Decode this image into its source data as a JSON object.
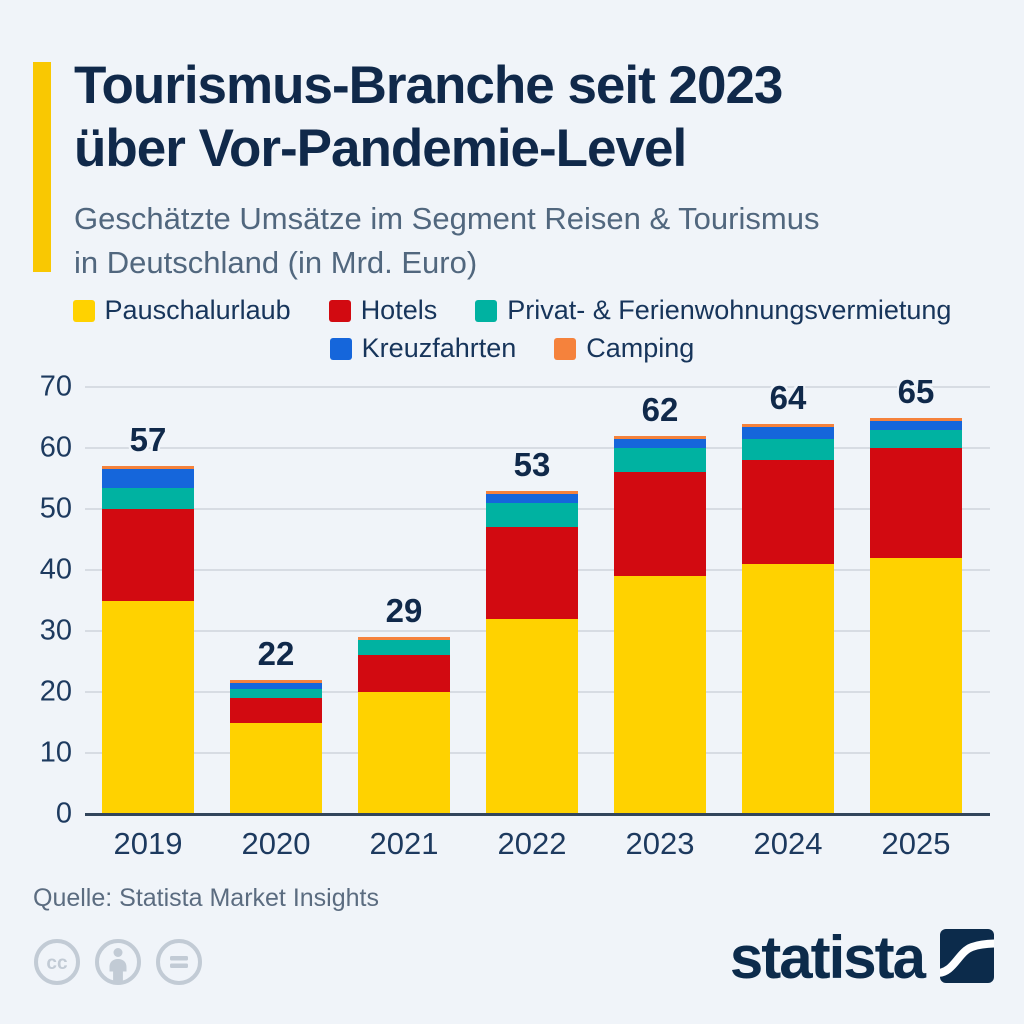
{
  "header": {
    "title_line1": "Tourismus-Branche seit 2023",
    "title_line2": "über Vor-Pandemie-Level",
    "subtitle_line1": "Geschätzte Umsätze im Segment Reisen & Tourismus",
    "subtitle_line2": "in Deutschland (in Mrd. Euro)"
  },
  "chart_data": {
    "type": "bar",
    "stacked": true,
    "title": "Tourismus-Branche seit 2023 über Vor-Pandemie-Level",
    "subtitle": "Geschätzte Umsätze im Segment Reisen & Tourismus in Deutschland (in Mrd. Euro)",
    "unit": "Mrd. Euro",
    "categories": [
      "2019",
      "2020",
      "2021",
      "2022",
      "2023",
      "2024",
      "2025"
    ],
    "series": [
      {
        "name": "Pauschalurlaub",
        "color": "#FFD200",
        "values": [
          35,
          15,
          20,
          32,
          39,
          41,
          42
        ]
      },
      {
        "name": "Hotels",
        "color": "#D20A11",
        "values": [
          15,
          4,
          6,
          15,
          17,
          17,
          18
        ]
      },
      {
        "name": "Privat- & Ferienwohnungsvermietung",
        "color": "#00B2A1",
        "values": [
          3.5,
          1.5,
          2.5,
          4,
          4,
          3.5,
          3
        ]
      },
      {
        "name": "Kreuzfahrten",
        "color": "#1566DB",
        "values": [
          3,
          1,
          0,
          1.5,
          1.5,
          2,
          1.5
        ]
      },
      {
        "name": "Camping",
        "color": "#F5823C",
        "values": [
          0.5,
          0.5,
          0.5,
          0.5,
          0.5,
          0.5,
          0.5
        ]
      }
    ],
    "totals": [
      57,
      22,
      29,
      53,
      62,
      64,
      65
    ],
    "ylim": [
      0,
      70
    ],
    "yticks": [
      0,
      10,
      20,
      30,
      40,
      50,
      60,
      70
    ],
    "grid": true,
    "legend_position": "top",
    "legend_rows": [
      [
        "Pauschalurlaub",
        "Hotels",
        "Privat- & Ferienwohnungsvermietung"
      ],
      [
        "Kreuzfahrten",
        "Camping"
      ]
    ]
  },
  "footer": {
    "source": "Quelle: Statista Market Insights",
    "license_icons": [
      "cc",
      "by",
      "nd"
    ],
    "brand_wordmark": "statista"
  },
  "colors": {
    "background": "#F0F4F9",
    "accent_bar": "#F9C802",
    "title": "#10294A",
    "subtitle": "#51677E",
    "axis_text": "#1D3A5F",
    "legend_text": "#17355B",
    "gridline": "#D7DCE3",
    "axis_line": "#32455B",
    "total_label": "#10294A",
    "icon_gray": "#C2CBD5",
    "logo_navy": "#0C2B4B"
  }
}
